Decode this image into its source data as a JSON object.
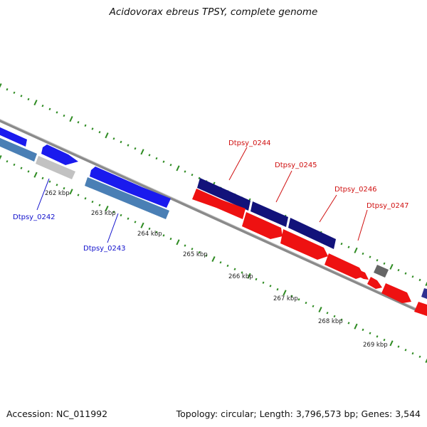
{
  "title": "Acidovorax ebreus TPSY, complete genome",
  "footer": {
    "accession": "Accession: NC_011992",
    "summary": "Topology: circular; Length: 3,796,573 bp; Genes: 3,544"
  },
  "colors": {
    "backbone": "#888888",
    "tick": "#2e8b22",
    "label_blue": "#1010cc",
    "label_red": "#d01010",
    "blue": "#1a1aee",
    "navy": "#12127a",
    "red": "#ee1111",
    "steel": "#4a7fb5",
    "gray": "#bbbbbb",
    "dark_gray": "#555555"
  },
  "kbp_labels": [
    "262 kbp",
    "263 kbp",
    "264 kbp",
    "265 kbp",
    "266 kbp",
    "267 kbp",
    "268 kbp",
    "269 kbp"
  ],
  "gene_labels": [
    {
      "text": "Dtpsy_0242",
      "color": "blue"
    },
    {
      "text": "Dtpsy_0243",
      "color": "blue"
    },
    {
      "text": "Dtpsy_0244",
      "color": "red"
    },
    {
      "text": "Dtpsy_0245",
      "color": "red"
    },
    {
      "text": "Dtpsy_0246",
      "color": "red"
    },
    {
      "text": "Dtpsy_0247",
      "color": "red"
    }
  ]
}
